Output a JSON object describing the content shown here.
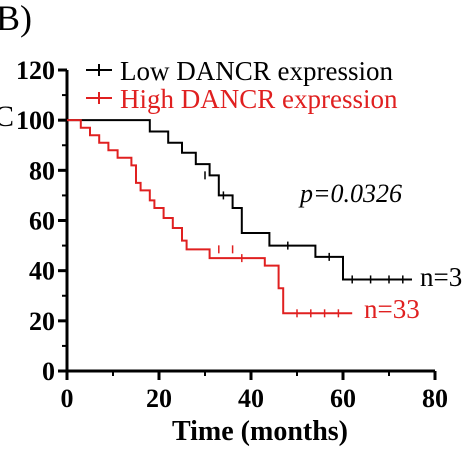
{
  "panel_label": "B)",
  "y_label_fragment": "C",
  "chart_data": {
    "type": "line",
    "step": true,
    "xlabel": "Time (months)",
    "ylabel": "",
    "xlim": [
      0,
      80
    ],
    "ylim": [
      0,
      120
    ],
    "xticks": [
      0,
      20,
      40,
      60,
      80
    ],
    "yticks": [
      0,
      20,
      40,
      60,
      80,
      100,
      120
    ],
    "grid": false,
    "legend_position": "top",
    "annotation": "p=0.0326",
    "series": [
      {
        "name": "Low DANCR expression",
        "color": "#000000",
        "end_label": "n=3",
        "x": [
          0,
          14,
          18,
          22,
          25,
          28,
          31,
          33,
          36,
          38,
          44,
          54,
          60,
          61,
          75
        ],
        "y": [
          100,
          100,
          95.5,
          91,
          87,
          82.5,
          78,
          70,
          65,
          55,
          50,
          45.5,
          36.5,
          36.5,
          36.5
        ],
        "censor_x": [
          30,
          34,
          48,
          57,
          62,
          66,
          70,
          73
        ],
        "censor_y": [
          78,
          70,
          50,
          45.5,
          36.5,
          36.5,
          36.5,
          36.5
        ]
      },
      {
        "name": "High DANCR expression",
        "color": "#e02020",
        "end_label": "n=33",
        "x": [
          0,
          3,
          5,
          7,
          9,
          11,
          14,
          15,
          16,
          18,
          19,
          21,
          23,
          25,
          26,
          29,
          31,
          40,
          43,
          46,
          47,
          62
        ],
        "y": [
          100,
          97,
          94,
          91,
          88,
          85,
          82,
          75,
          72,
          68,
          65,
          61,
          57,
          52,
          48.5,
          48.5,
          45,
          45,
          42,
          33,
          23,
          23
        ],
        "censor_x": [
          33,
          36,
          38,
          50,
          53,
          56,
          59
        ],
        "censor_y": [
          48.5,
          48.5,
          45,
          23,
          23,
          23,
          23
        ]
      }
    ]
  }
}
